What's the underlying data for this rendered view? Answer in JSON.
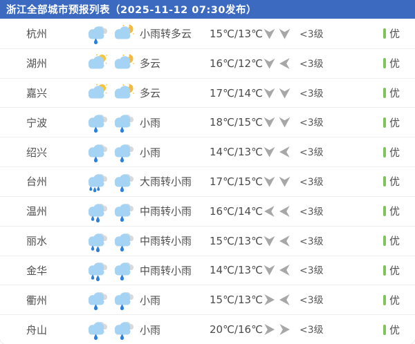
{
  "header": {
    "title": "浙江全部城市预报列表（2025-11-12 07:30发布）",
    "bg_color": "#3c6ac0"
  },
  "table": {
    "wind_arrow_color": "#a7a7a7",
    "aqi_good_color": "#7fc45a",
    "icon_colors": {
      "cloud_blue": "#a5d3f3",
      "cloud_gray": "#d9d9d9",
      "rain_drop_blue": "#2c80da",
      "sun_yellow": "#f9c33c",
      "moon_orange": "#f6b93e"
    },
    "rows": [
      {
        "city": "杭州",
        "day_icon": "light-rain",
        "night_icon": "cloudy-night",
        "weather": "小雨转多云",
        "temp": "15℃/13℃",
        "wind_dirs": [
          "down",
          "down"
        ],
        "wind_level": "<3级",
        "aqi": "优"
      },
      {
        "city": "湖州",
        "day_icon": "cloudy-day",
        "night_icon": "cloudy-night",
        "weather": "多云",
        "temp": "16℃/12℃",
        "wind_dirs": [
          "down",
          "left"
        ],
        "wind_level": "<3级",
        "aqi": "优"
      },
      {
        "city": "嘉兴",
        "day_icon": "cloudy-day",
        "night_icon": "cloudy-night",
        "weather": "多云",
        "temp": "17℃/14℃",
        "wind_dirs": [
          "down",
          "down"
        ],
        "wind_level": "<3级",
        "aqi": "优"
      },
      {
        "city": "宁波",
        "day_icon": "light-rain",
        "night_icon": "light-rain",
        "weather": "小雨",
        "temp": "18℃/15℃",
        "wind_dirs": [
          "down",
          "down"
        ],
        "wind_level": "<3级",
        "aqi": "优"
      },
      {
        "city": "绍兴",
        "day_icon": "light-rain",
        "night_icon": "light-rain",
        "weather": "小雨",
        "temp": "14℃/13℃",
        "wind_dirs": [
          "down",
          "left"
        ],
        "wind_level": "<3级",
        "aqi": "优"
      },
      {
        "city": "台州",
        "day_icon": "heavy-rain",
        "night_icon": "light-rain",
        "weather": "大雨转小雨",
        "temp": "17℃/15℃",
        "wind_dirs": [
          "down",
          "down"
        ],
        "wind_level": "<3级",
        "aqi": "优"
      },
      {
        "city": "温州",
        "day_icon": "moderate-rain",
        "night_icon": "light-rain",
        "weather": "中雨转小雨",
        "temp": "16℃/14℃",
        "wind_dirs": [
          "left",
          "left"
        ],
        "wind_level": "<3级",
        "aqi": "优"
      },
      {
        "city": "丽水",
        "day_icon": "moderate-rain",
        "night_icon": "light-rain",
        "weather": "中雨转小雨",
        "temp": "15℃/13℃",
        "wind_dirs": [
          "down",
          "left"
        ],
        "wind_level": "<3级",
        "aqi": "优"
      },
      {
        "city": "金华",
        "day_icon": "moderate-rain",
        "night_icon": "light-rain",
        "weather": "中雨转小雨",
        "temp": "14℃/13℃",
        "wind_dirs": [
          "down",
          "left"
        ],
        "wind_level": "<3级",
        "aqi": "优"
      },
      {
        "city": "衢州",
        "day_icon": "light-rain",
        "night_icon": "light-rain",
        "weather": "小雨",
        "temp": "15℃/13℃",
        "wind_dirs": [
          "right",
          "left"
        ],
        "wind_level": "<3级",
        "aqi": "优"
      },
      {
        "city": "舟山",
        "day_icon": "light-rain",
        "night_icon": "light-rain",
        "weather": "小雨",
        "temp": "20℃/16℃",
        "wind_dirs": [
          "right",
          "right"
        ],
        "wind_level": "<3级",
        "aqi": "优"
      }
    ]
  }
}
